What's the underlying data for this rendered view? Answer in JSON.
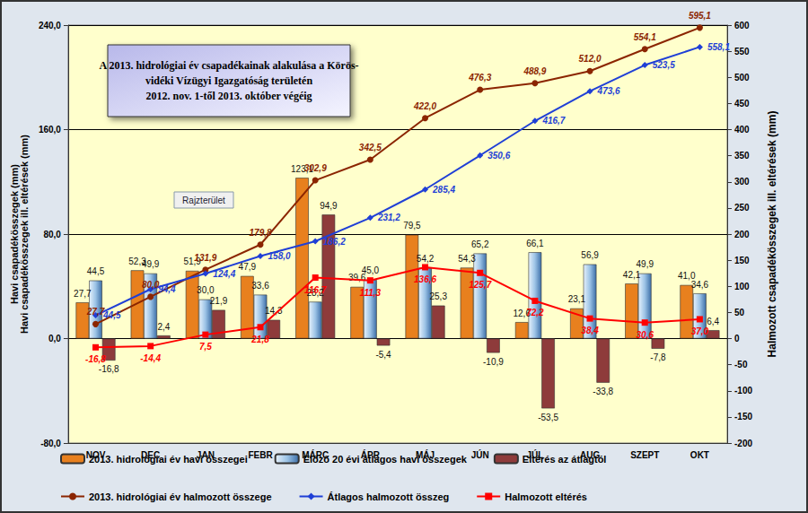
{
  "chart_data": {
    "type": "bar",
    "title": "A 2013. hidrológiai év csapadékainak alakulása a Körös-\nvidéki Vízügyi Igazgatóság területén\n2012. nov. 1-től 2013. október végéig",
    "annotation": "Rajzterület",
    "ylabel": "Havi csapadékösszegek (mm)\nHavi csapadékösszegek ill. eltérések (mm)",
    "y2label": "Halmozott csapadékösszegek ill. eltérések (mm)",
    "categories": [
      "NOV",
      "DEC",
      "JAN",
      "FEBR",
      "MÁRC",
      "ÁPR",
      "MÁJ",
      "JÚN",
      "JÚL",
      "AUG",
      "SZEPT",
      "OKT"
    ],
    "series": [
      {
        "name": "2013. hidrológiai év havi összegei",
        "type": "bar",
        "color": "#e8801e",
        "values": [
          27.7,
          52.3,
          51.9,
          47.9,
          123.1,
          39.6,
          79.5,
          54.3,
          12.6,
          23.1,
          42.1,
          41.0
        ],
        "value_labels": [
          "27,7",
          "52,3",
          "51,9",
          "47,9",
          "123,1",
          "39,6",
          "79,5",
          "54,3",
          "12,6",
          "23,1",
          "42,1",
          "41,0"
        ]
      },
      {
        "name": "Előző 20 évi átlagos havi összegek",
        "type": "bar",
        "color": "#9cc3e6",
        "values": [
          44.5,
          49.9,
          30.0,
          33.6,
          28.2,
          45.0,
          54.2,
          65.2,
          66.1,
          56.9,
          49.9,
          34.6
        ],
        "value_labels": [
          "44,5",
          "49,9",
          "30,0",
          "33,6",
          "28,2",
          "45,0",
          "54,2",
          "65,2",
          "66,1",
          "56,9",
          "49,9",
          "34,6"
        ]
      },
      {
        "name": "Eltérés az átlagtól",
        "type": "bar",
        "color": "#8e3b3b",
        "values": [
          -16.8,
          2.4,
          21.9,
          14.3,
          94.9,
          -5.4,
          25.3,
          -10.9,
          -53.5,
          -33.8,
          -7.8,
          6.4
        ],
        "value_labels": [
          "-16,8",
          "2,4",
          "21,9",
          "14,3",
          "94,9",
          "-5,4",
          "25,3",
          "-10,9",
          "-53,5",
          "-33,8",
          "-7,8",
          "6,4"
        ]
      },
      {
        "name": "2013. hidrológiai év halmozott összege",
        "type": "line",
        "axis": "y2",
        "color": "#8b2500",
        "marker": "circle",
        "values": [
          27.7,
          80.0,
          131.9,
          179.8,
          302.9,
          342.5,
          422.0,
          476.3,
          488.9,
          512.0,
          554.1,
          595.1
        ],
        "value_labels": [
          "27,7",
          "80,0",
          "131,9",
          "179,8",
          "302,9",
          "342,5",
          "422,0",
          "476,3",
          "488,9",
          "512,0",
          "554,1",
          "595,1"
        ]
      },
      {
        "name": "Átlagos halmozott összeg",
        "type": "line",
        "axis": "y2",
        "color": "#1f3fd6",
        "marker": "diamond",
        "values": [
          44.5,
          94.4,
          124.4,
          158.0,
          186.2,
          231.2,
          285.4,
          350.6,
          416.7,
          473.6,
          523.5,
          558.1
        ],
        "value_labels": [
          "44,5",
          "94,4",
          "124,4",
          "158,0",
          "186,2",
          "231,2",
          "285,4",
          "350,6",
          "416,7",
          "473,6",
          "523,5",
          "558,1"
        ]
      },
      {
        "name": "Halmozott eltérés",
        "type": "line",
        "axis": "y2",
        "color": "#ff0000",
        "marker": "square",
        "values": [
          -16.8,
          -14.4,
          7.5,
          21.8,
          116.7,
          111.3,
          136.6,
          125.7,
          72.2,
          38.4,
          30.6,
          37.0
        ],
        "value_labels": [
          "-16,8",
          "-14,4",
          "7,5",
          "21,8",
          "116,7",
          "111,3",
          "136,6",
          "125,7",
          "72,2",
          "38,4",
          "30,6",
          "37,0"
        ]
      }
    ],
    "ylim": [
      -80,
      240
    ],
    "yticks": [
      {
        "value": -80,
        "label": "-80,0"
      },
      {
        "value": 0,
        "label": "0,0"
      },
      {
        "value": 80,
        "label": "80,0"
      },
      {
        "value": 160,
        "label": "160,0"
      },
      {
        "value": 240,
        "label": "240,0"
      }
    ],
    "y2lim": [
      -200,
      600
    ],
    "y2ticks": [
      -200,
      -150,
      -100,
      -50,
      0,
      50,
      100,
      150,
      200,
      250,
      300,
      350,
      400,
      450,
      500,
      550,
      600
    ],
    "grid": true,
    "legend": "bottom",
    "data_labels": true
  }
}
